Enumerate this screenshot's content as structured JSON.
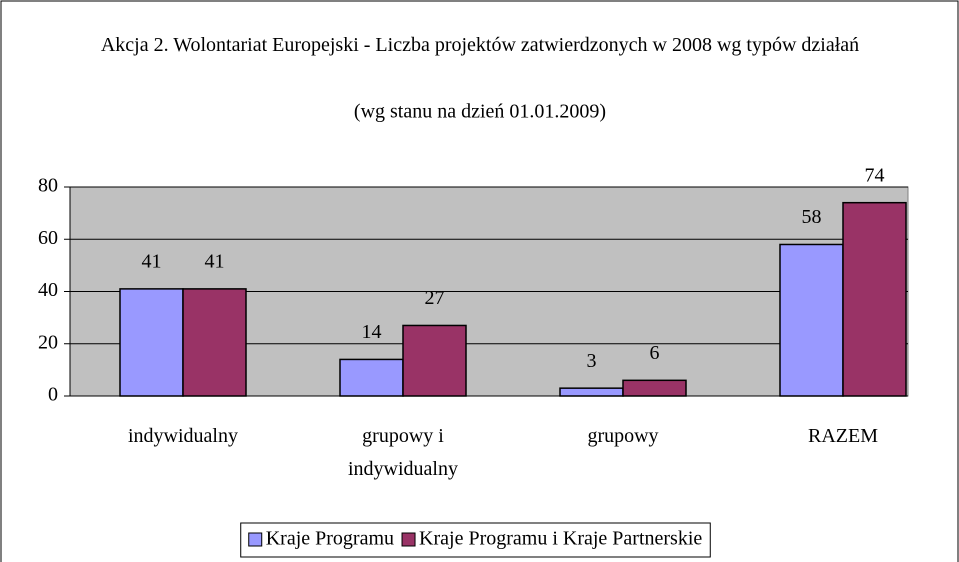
{
  "chart_data": {
    "type": "bar",
    "title": "Akcja 2. Wolontariat Europejski - Liczba projektów zatwierdzonych w 2008 wg typów działań",
    "subtitle": "(wg stanu na dzień 01.01.2009)",
    "categories": [
      "indywidualny",
      "grupowy i indywidualny",
      "grupowy",
      "RAZEM"
    ],
    "series": [
      {
        "name": "Kraje Programu",
        "color": "#9999ff",
        "values": [
          41,
          14,
          3,
          58
        ]
      },
      {
        "name": "Kraje Programu i Kraje Partnerskie",
        "color": "#993366",
        "values": [
          41,
          27,
          6,
          74
        ]
      }
    ],
    "ylim": [
      0,
      80
    ],
    "yticks": [
      0,
      20,
      40,
      60,
      80
    ],
    "grid": true,
    "legend": "bottom"
  }
}
